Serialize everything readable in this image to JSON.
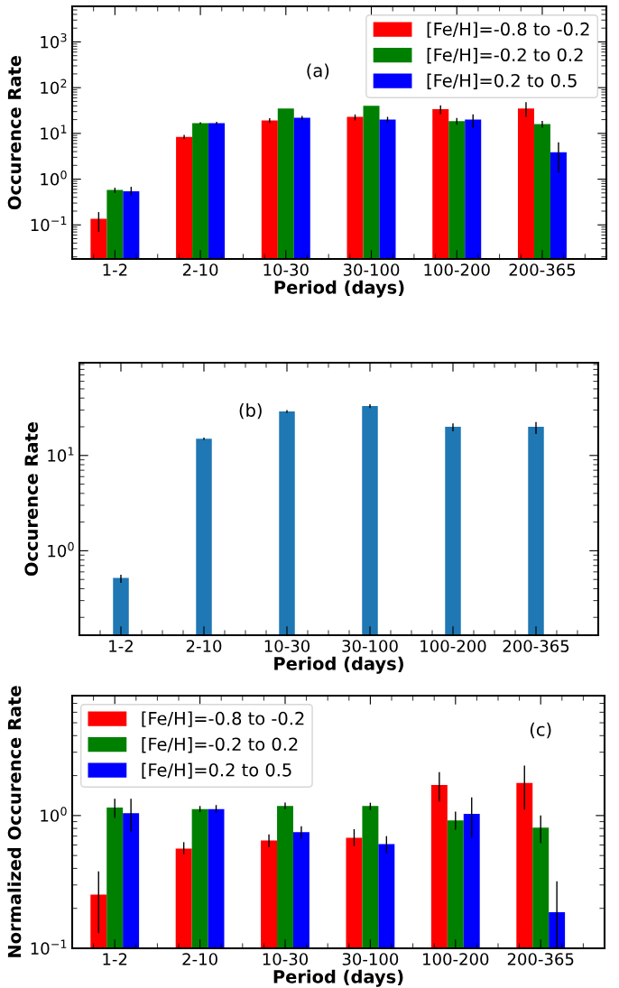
{
  "chart_data": [
    {
      "type": "bar",
      "xlabel": "Period (days)",
      "ylabel": "Occurence Rate",
      "annotations": [
        "(a)"
      ],
      "categories": [
        "1-2",
        "2-10",
        "10-30",
        "30-100",
        "100-200",
        "200-365"
      ],
      "series": [
        {
          "name": "[Fe/H]=-0.8 to -0.2",
          "color": "#ff0000",
          "values": [
            0.136,
            8.4,
            19.2,
            23,
            34,
            35
          ],
          "errors": [
            [
              0.07,
              0.19
            ],
            [
              7.6,
              9.3
            ],
            [
              17,
              21.5
            ],
            [
              19.3,
              26
            ],
            [
              26.5,
              41
            ],
            [
              23,
              48
            ]
          ]
        },
        {
          "name": "[Fe/H]=-0.2 to 0.2",
          "color": "#008000",
          "values": [
            0.58,
            16.7,
            35,
            40,
            18.5,
            16
          ],
          "errors": [
            [
              0.5,
              0.65
            ],
            [
              16,
              17.5
            ],
            null,
            null,
            [
              15.4,
              21.7
            ],
            [
              13.4,
              18.8
            ]
          ]
        },
        {
          "name": "[Fe/H]=0.2 to 0.5",
          "color": "#0000ff",
          "values": [
            0.54,
            16.7,
            22,
            20,
            20,
            3.85
          ],
          "errors": [
            [
              0.44,
              0.68
            ],
            [
              15.5,
              18
            ],
            [
              20,
              24
            ],
            [
              17.4,
              23
            ],
            [
              13.4,
              26
            ],
            [
              1.4,
              6.4
            ]
          ]
        }
      ],
      "log": "y",
      "ylim": [
        0.018,
        6000
      ],
      "yticks": [
        {
          "value": 0.1,
          "label": "10$^{−1}$"
        },
        {
          "value": 1,
          "label": "10$^{0}$"
        },
        {
          "value": 10,
          "label": "10$^{1}$"
        },
        {
          "value": 100,
          "label": "10$^{2}$"
        },
        {
          "value": 1000,
          "label": "10$^{3}$"
        }
      ],
      "legend": "top right"
    },
    {
      "type": "bar",
      "xlabel": "Period (days)",
      "ylabel": "Occurence Rate",
      "annotations": [
        "(b)"
      ],
      "categories": [
        "1-2",
        "2-10",
        "10-30",
        "30-100",
        "100-200",
        "200-365"
      ],
      "series": [
        {
          "color": "#1f77b4",
          "values": [
            0.52,
            15,
            29,
            33,
            20,
            20
          ],
          "errors": [
            [
              0.46,
              0.56
            ],
            [
              14.6,
              15.4
            ],
            [
              28,
              30
            ],
            [
              31.5,
              34.5
            ],
            [
              17.9,
              21.7
            ],
            [
              16.8,
              22.4
            ]
          ]
        }
      ],
      "log": "y",
      "ylim": [
        0.13,
        94
      ],
      "yticks": [
        {
          "value": 1,
          "label": "10$^{0}$"
        },
        {
          "value": 10,
          "label": "10$^{1}$"
        }
      ]
    },
    {
      "type": "bar",
      "xlabel": "Period (days)",
      "ylabel": "Normalized Occurence Rate",
      "annotations": [
        "(c)"
      ],
      "categories": [
        "1-2",
        "2-10",
        "10-30",
        "30-100",
        "100-200",
        "200-365"
      ],
      "series": [
        {
          "name": "[Fe/H]=-0.8 to -0.2",
          "color": "#ff0000",
          "values": [
            0.254,
            0.564,
            0.65,
            0.68,
            1.7,
            1.76
          ],
          "errors": [
            [
              0.13,
              0.38
            ],
            [
              0.51,
              0.63
            ],
            [
              0.58,
              0.72
            ],
            [
              0.59,
              0.79
            ],
            [
              1.27,
              2.12
            ],
            [
              1.11,
              2.38
            ]
          ]
        },
        {
          "name": "[Fe/H]=-0.2 to 0.2",
          "color": "#008000",
          "values": [
            1.15,
            1.12,
            1.18,
            1.18,
            0.92,
            0.81
          ],
          "errors": [
            [
              0.96,
              1.34
            ],
            [
              1.06,
              1.18
            ],
            [
              1.12,
              1.25
            ],
            [
              1.1,
              1.25
            ],
            [
              0.78,
              1.07
            ],
            [
              0.62,
              1.0
            ]
          ]
        },
        {
          "name": "[Fe/H]=0.2 to 0.5",
          "color": "#0000ff",
          "values": [
            1.04,
            1.12,
            0.75,
            0.61,
            1.03,
            0.187
          ],
          "errors": [
            [
              0.76,
              1.34
            ],
            [
              1.05,
              1.2
            ],
            [
              0.67,
              0.83
            ],
            [
              0.52,
              0.7
            ],
            [
              0.68,
              1.37
            ],
            [
              0.1,
              0.32
            ]
          ]
        }
      ],
      "log": "y",
      "ylim": [
        0.1,
        8
      ],
      "yticks": [
        {
          "value": 0.1,
          "label": "10$^{−1}$"
        },
        {
          "value": 1,
          "label": "10$^{0}$"
        }
      ],
      "legend": "top left"
    }
  ]
}
